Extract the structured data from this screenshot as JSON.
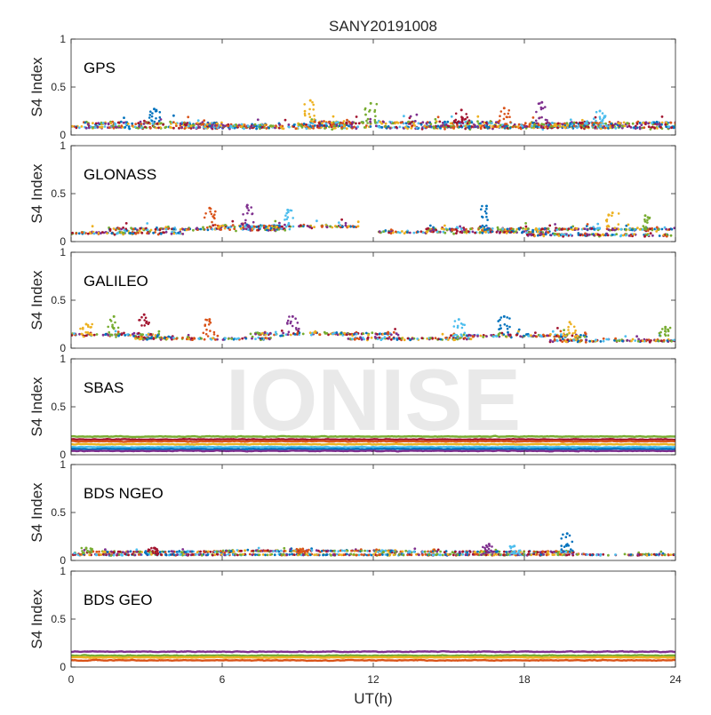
{
  "figure": {
    "title": "SANY20191008",
    "watermark": "IONISE"
  },
  "chart_data": {
    "type": "scatter",
    "title": "SANY20191008",
    "xlabel": "UT(h)",
    "ylabel": "S4 Index",
    "xlim": [
      0,
      24
    ],
    "ylim": [
      0,
      1
    ],
    "xticks": [
      0,
      6,
      12,
      18,
      24
    ],
    "yticks": [
      0,
      0.5,
      1
    ],
    "ytick_labels": [
      "0",
      "0.5",
      "1"
    ],
    "grid": false,
    "legend": "none",
    "series_colors": [
      "#0072BD",
      "#D95319",
      "#EDB120",
      "#7E2F8E",
      "#77AC30",
      "#4DBEEE",
      "#A2142F"
    ],
    "panels": [
      {
        "name": "GPS",
        "style": "scatter",
        "baseline": 0.11,
        "spread": 0.045,
        "spikes": [
          [
            3.3,
            0.27
          ],
          [
            9.5,
            0.36
          ],
          [
            11.9,
            0.33
          ],
          [
            15.5,
            0.26
          ],
          [
            17.2,
            0.28
          ],
          [
            18.7,
            0.34
          ],
          [
            21.0,
            0.25
          ]
        ],
        "tracks": [
          {
            "x": [
              0.0,
              24.0
            ],
            "y": 0.08
          },
          {
            "x": [
              0.5,
              6.0
            ],
            "y": 0.12
          },
          {
            "x": [
              4.5,
              11.0
            ],
            "y": 0.1
          },
          {
            "x": [
              9.5,
              17.0
            ],
            "y": 0.13
          },
          {
            "x": [
              14.0,
              22.0
            ],
            "y": 0.09
          },
          {
            "x": [
              18.0,
              24.0
            ],
            "y": 0.12
          }
        ]
      },
      {
        "name": "GLONASS",
        "style": "scatter",
        "baseline": 0.12,
        "spread": 0.04,
        "spikes": [
          [
            5.5,
            0.35
          ],
          [
            7.0,
            0.38
          ],
          [
            8.6,
            0.33
          ],
          [
            16.5,
            0.37
          ],
          [
            21.5,
            0.3
          ],
          [
            22.8,
            0.27
          ]
        ],
        "tracks": [
          {
            "x": [
              0.0,
              4.5
            ],
            "y": 0.09
          },
          {
            "x": [
              1.5,
              8.5
            ],
            "y": 0.13
          },
          {
            "x": [
              5.5,
              11.5
            ],
            "y": 0.16
          },
          {
            "x": [
              12.2,
              19.0
            ],
            "y": 0.1
          },
          {
            "x": [
              14.0,
              24.0
            ],
            "y": 0.13
          },
          {
            "x": [
              18.0,
              24.0
            ],
            "y": 0.07
          }
        ]
      },
      {
        "name": "GALILEO",
        "style": "scatter",
        "baseline": 0.11,
        "spread": 0.045,
        "spikes": [
          [
            0.6,
            0.25
          ],
          [
            1.7,
            0.33
          ],
          [
            2.9,
            0.35
          ],
          [
            5.5,
            0.3
          ],
          [
            8.8,
            0.33
          ],
          [
            15.4,
            0.3
          ],
          [
            17.2,
            0.33
          ],
          [
            19.8,
            0.27
          ],
          [
            23.6,
            0.22
          ]
        ],
        "tracks": [
          {
            "x": [
              0.0,
              3.5
            ],
            "y": 0.14
          },
          {
            "x": [
              2.5,
              8.0
            ],
            "y": 0.1
          },
          {
            "x": [
              7.0,
              13.0
            ],
            "y": 0.15
          },
          {
            "x": [
              11.0,
              16.0
            ],
            "y": 0.1
          },
          {
            "x": [
              15.0,
              20.5
            ],
            "y": 0.13
          },
          {
            "x": [
              19.0,
              24.0
            ],
            "y": 0.08
          }
        ]
      },
      {
        "name": "SBAS",
        "style": "bands",
        "bands": [
          {
            "color": "#77AC30",
            "y": 0.19
          },
          {
            "color": "#A2142F",
            "y": 0.16
          },
          {
            "color": "#D95319",
            "y": 0.14
          },
          {
            "color": "#EDB120",
            "y": 0.11
          },
          {
            "color": "#4DBEEE",
            "y": 0.08
          },
          {
            "color": "#0072BD",
            "y": 0.06
          },
          {
            "color": "#7E2F8E",
            "y": 0.04
          }
        ]
      },
      {
        "name": "BDS NGEO",
        "style": "scatter",
        "baseline": 0.07,
        "spread": 0.02,
        "spikes": [
          [
            0.6,
            0.13
          ],
          [
            3.3,
            0.13
          ],
          [
            9.2,
            0.12
          ],
          [
            16.6,
            0.17
          ],
          [
            17.6,
            0.15
          ],
          [
            19.7,
            0.28
          ]
        ],
        "tracks": [
          {
            "x": [
              0.0,
              24.0
            ],
            "y": 0.06
          },
          {
            "x": [
              0.5,
              6.5
            ],
            "y": 0.09
          },
          {
            "x": [
              6.0,
              13.0
            ],
            "y": 0.1
          },
          {
            "x": [
              12.0,
              20.0
            ],
            "y": 0.09
          }
        ]
      },
      {
        "name": "BDS GEO",
        "style": "bands",
        "bands": [
          {
            "color": "#7E2F8E",
            "y": 0.16
          },
          {
            "color": "#77AC30",
            "y": 0.12
          },
          {
            "color": "#EDB120",
            "y": 0.1
          },
          {
            "color": "#D95319",
            "y": 0.07
          }
        ]
      }
    ]
  }
}
